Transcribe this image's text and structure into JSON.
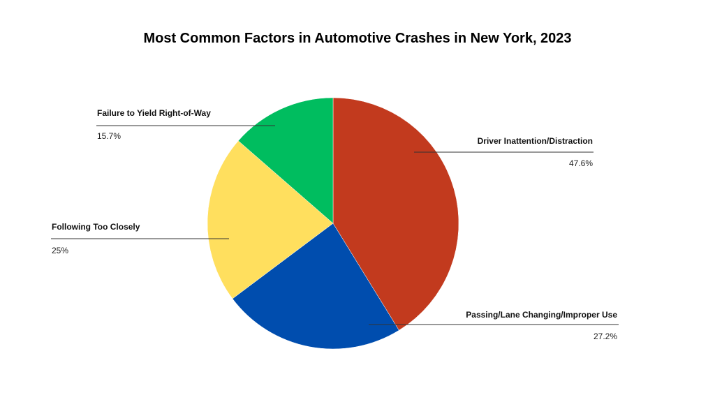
{
  "chart_data": {
    "type": "pie",
    "title": "Most Common Factors in Automotive Crashes in New York, 2023",
    "slices": [
      {
        "label": "Driver Inattention/Distraction",
        "value_label": "47.6%",
        "value": 47.6,
        "color": "#C23A1E"
      },
      {
        "label": "Passing/Lane Changing/Improper Use",
        "value_label": "27.2%",
        "value": 27.2,
        "color": "#004DAE"
      },
      {
        "label": "Following Too Closely",
        "value_label": "25%",
        "value": 25,
        "color": "#FFDF5E"
      },
      {
        "label": "Failure to Yield Right-of-Way",
        "value_label": "15.7%",
        "value": 15.7,
        "color": "#00BD5F"
      }
    ]
  }
}
